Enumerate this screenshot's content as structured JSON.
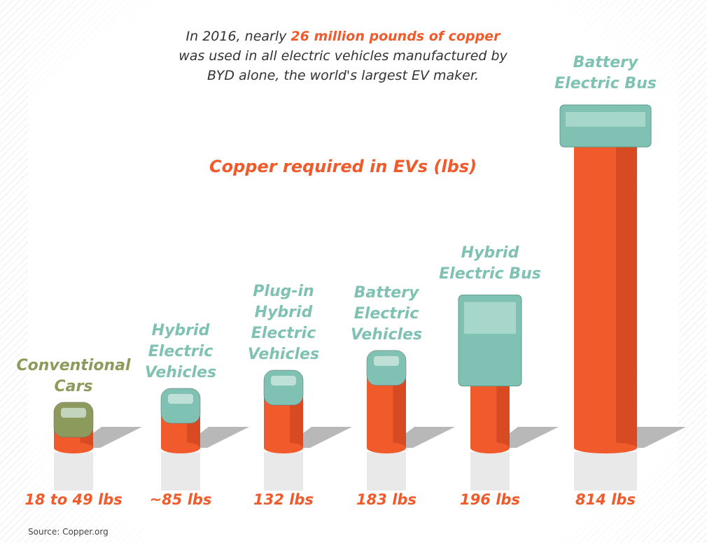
{
  "chart_data": {
    "type": "bar",
    "intro": {
      "before": "In 2016, nearly",
      "highlight": "26 million pounds of copper",
      "after": "was used in all electric vehicles manufactured by BYD alone, the world's largest EV maker."
    },
    "title": "Copper required in EVs (lbs)",
    "categories": [
      "Conventional Cars",
      "Hybrid Electric Vehicles",
      "Plug-in Hybrid Electric Vehicles",
      "Battery Electric Vehicles",
      "Hybrid Electric Bus",
      "Battery Electric Bus"
    ],
    "values": [
      49,
      85,
      132,
      183,
      196,
      814
    ],
    "value_labels": [
      "18 to 49 lbs",
      "~85 lbs",
      "132 lbs",
      "183 lbs",
      "196 lbs",
      "814 lbs"
    ],
    "color": "#f15a2b",
    "category_colors": [
      "#8c9a5c",
      "#7fc1b2",
      "#7fc1b2",
      "#7fc1b2",
      "#7fc1b2",
      "#7fc1b2"
    ],
    "source": "Source: Copper.org"
  }
}
